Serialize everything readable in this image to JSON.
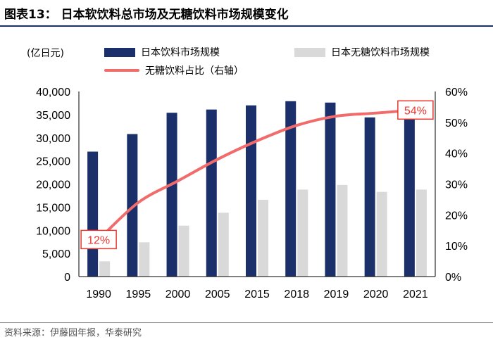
{
  "header": {
    "title": "图表13：  日本软饮料总市场及无糖饮料市场规模变化"
  },
  "unit_label": "(亿日元)",
  "footer": {
    "source": "资料来源：伊藤园年报，华泰研究"
  },
  "colors": {
    "total_bar": "#1b2f6b",
    "sugarfree_bar": "#d9d9d9",
    "share_line": "#f26b6b",
    "annotation_border": "#e8382f",
    "annotation_text": "#e8382f"
  },
  "chart_data": {
    "type": "bar",
    "title": "日本软饮料总市场及无糖饮料市场规模变化",
    "categories": [
      "1990",
      "1995",
      "2000",
      "2005",
      "2015",
      "2018",
      "2019",
      "2020",
      "2021"
    ],
    "series": [
      {
        "name": "日本饮料市场规模",
        "type": "bar",
        "axis": "left",
        "values": [
          27000,
          30800,
          35400,
          36100,
          37000,
          37900,
          37600,
          34400,
          34800
        ]
      },
      {
        "name": "日本无糖饮料市场规模",
        "type": "bar",
        "axis": "left",
        "values": [
          3300,
          7400,
          11000,
          13800,
          16600,
          18800,
          19800,
          18300,
          18800
        ]
      },
      {
        "name": "无糖饮料占比（右轴）",
        "type": "line",
        "axis": "right",
        "values": [
          12,
          24,
          31,
          38,
          44,
          49,
          52,
          53,
          54
        ]
      }
    ],
    "y_left": {
      "min": 0,
      "max": 40000,
      "step": 5000,
      "tick_labels": [
        "0",
        "5,000",
        "10,000",
        "15,000",
        "20,000",
        "25,000",
        "30,000",
        "35,000",
        "40,000"
      ]
    },
    "y_right": {
      "min": 0,
      "max": 60,
      "step": 10,
      "tick_labels": [
        "0%",
        "10%",
        "20%",
        "30%",
        "40%",
        "50%",
        "60%"
      ]
    },
    "annotations": [
      {
        "index": 0,
        "series": 2,
        "text": "12%"
      },
      {
        "index": 8,
        "series": 2,
        "text": "54%"
      }
    ],
    "legend": {
      "items": [
        "日本饮料市场规模",
        "日本无糖饮料市场规模",
        "无糖饮料占比（右轴）"
      ]
    }
  }
}
